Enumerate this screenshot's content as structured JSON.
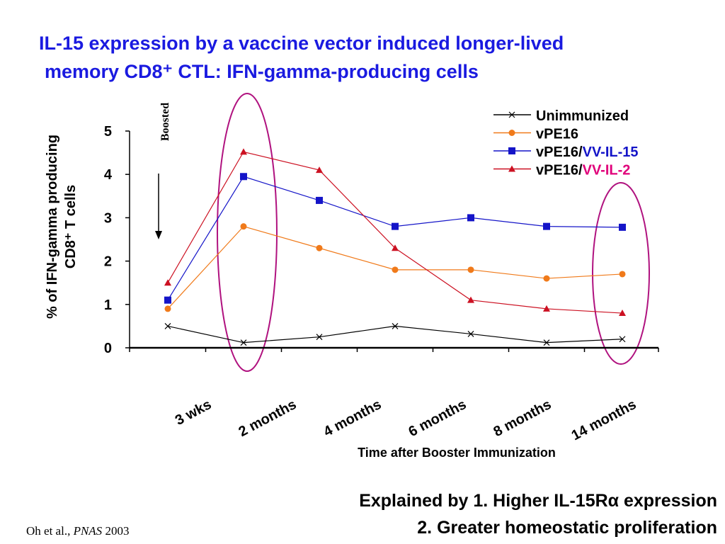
{
  "chart_data": {
    "type": "line",
    "title": [
      "IL-15 expression by a vaccine vector induced longer-lived",
      "memory CD8⁺ CTL: IFN-gamma-producing cells"
    ],
    "y_label": [
      "% of  IFN-gamma producing",
      "CD8⁺ T cells"
    ],
    "x_label": "Time after Booster Immunization",
    "annotation": "Boosted",
    "categories": [
      null,
      "3 wks",
      "2 months",
      "4 months",
      "6 months",
      "8 months",
      "14 months"
    ],
    "ylim": [
      0,
      5
    ],
    "yticks": [
      0,
      1,
      2,
      3,
      4,
      5
    ],
    "series": [
      {
        "name": "Unimmunized",
        "color": "#000000",
        "marker": "x",
        "values": [
          0.5,
          0.12,
          0.25,
          0.5,
          0.32,
          0.12,
          0.2
        ]
      },
      {
        "name": "vPE16",
        "color": "#f07a1a",
        "marker": "circle",
        "values": [
          0.9,
          2.8,
          2.3,
          1.8,
          1.8,
          1.6,
          1.7
        ]
      },
      {
        "name": "vPE16/VV-IL-15",
        "color": "#1414c8",
        "marker": "square",
        "values": [
          1.1,
          3.95,
          3.4,
          2.8,
          3.0,
          2.8,
          2.78
        ]
      },
      {
        "name": "vPE16/VV-IL-2",
        "color": "#cc1122",
        "marker": "triangle",
        "values": [
          1.5,
          4.52,
          4.1,
          2.3,
          1.1,
          0.9,
          0.8
        ]
      }
    ],
    "footer": [
      "Explained by 1. Higher IL-15Rα expression",
      "2.  Greater homeostatic proliferation"
    ],
    "citation": {
      "authors": "Oh et al.,",
      "journal": "PNAS",
      "year": "2003"
    }
  }
}
